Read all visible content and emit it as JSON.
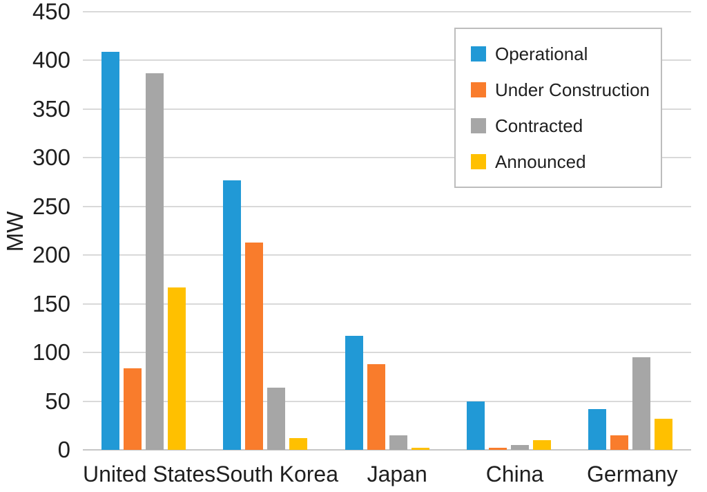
{
  "chart_data": {
    "type": "bar",
    "categories": [
      "United States",
      "South Korea",
      "Japan",
      "China",
      "Germany"
    ],
    "series": [
      {
        "name": "Operational",
        "color": "#2199D6",
        "values": [
          409,
          277,
          117,
          50,
          42
        ]
      },
      {
        "name": "Under Construction",
        "color": "#F97C2C",
        "values": [
          84,
          213,
          88,
          2,
          15
        ]
      },
      {
        "name": "Contracted",
        "color": "#A6A6A6",
        "values": [
          387,
          64,
          15,
          5,
          95
        ]
      },
      {
        "name": "Announced",
        "color": "#FFC000",
        "values": [
          167,
          12,
          2,
          10,
          32
        ]
      }
    ],
    "ylabel": "MW",
    "ylim": [
      0,
      450
    ],
    "ytick_step": 50,
    "yticks": [
      0,
      50,
      100,
      150,
      200,
      250,
      300,
      350,
      400,
      450
    ],
    "grid": true,
    "legend_position": "top-right",
    "colors": {
      "gridline": "#D9D9D9",
      "axis_line": "#C6C6C6",
      "legend_border": "#BDBDBD",
      "text": "#1F1F1F",
      "background": "#FFFFFF"
    }
  }
}
